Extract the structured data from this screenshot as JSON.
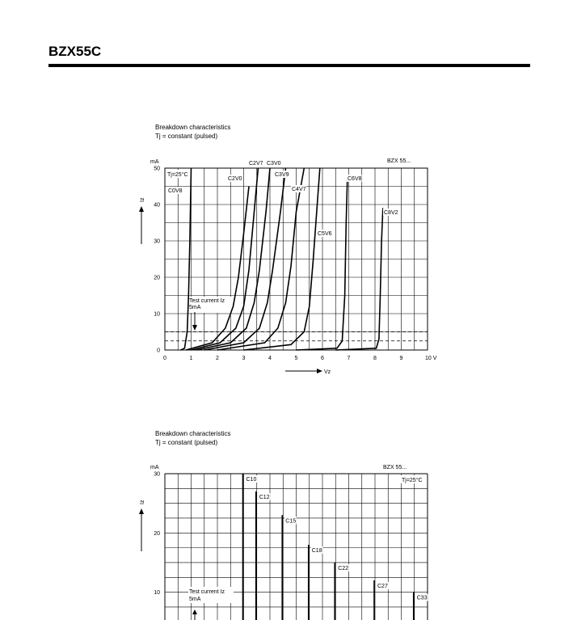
{
  "page": {
    "title": "BZX55C"
  },
  "chart_data": [
    {
      "type": "line",
      "caption": [
        "Breakdown characteristics",
        "Tj = constant (pulsed)"
      ],
      "watermark": "BZX 55...",
      "y_unit": "mA",
      "y_axis_label": "Iz",
      "x_axis_label": "Vz",
      "x_unit": "V",
      "xlim": [
        0,
        10
      ],
      "ylim": [
        0,
        50
      ],
      "x_ticks": [
        "0",
        "1",
        "2",
        "3",
        "4",
        "5",
        "6",
        "7",
        "8",
        "9",
        "10"
      ],
      "y_ticks": [
        "0",
        "10",
        "20",
        "30",
        "40",
        "50"
      ],
      "condition_label": "Tj=25°C",
      "test_current": {
        "label_line1": "Test current Iz",
        "label_line2": "5mA",
        "value": 5
      },
      "reference_lines": [
        2.5,
        5
      ],
      "grid": true,
      "series": [
        {
          "name": "C0V8",
          "label": "C0V8",
          "points": [
            [
              0.6,
              0
            ],
            [
              0.75,
              0.5
            ],
            [
              0.85,
              5
            ],
            [
              0.9,
              15
            ],
            [
              0.95,
              30
            ],
            [
              1.0,
              50
            ]
          ]
        },
        {
          "name": "C2V0",
          "label": "C2V0",
          "points": [
            [
              0.8,
              0
            ],
            [
              1.8,
              2
            ],
            [
              2.3,
              6
            ],
            [
              2.6,
              12
            ],
            [
              2.8,
              20
            ],
            [
              3.0,
              32
            ],
            [
              3.2,
              45
            ]
          ]
        },
        {
          "name": "C2V7",
          "label": "C2V7",
          "points": [
            [
              1.0,
              0
            ],
            [
              2.1,
              2
            ],
            [
              2.7,
              6
            ],
            [
              3.0,
              12
            ],
            [
              3.2,
              22
            ],
            [
              3.4,
              38
            ],
            [
              3.55,
              50
            ]
          ]
        },
        {
          "name": "C3V0",
          "label": "C3V0",
          "points": [
            [
              1.2,
              0
            ],
            [
              2.5,
              2
            ],
            [
              3.1,
              6
            ],
            [
              3.4,
              13
            ],
            [
              3.6,
              22
            ],
            [
              3.85,
              38
            ],
            [
              4.0,
              50
            ]
          ]
        },
        {
          "name": "C3V9",
          "label": "C3V9",
          "points": [
            [
              1.5,
              0
            ],
            [
              3.0,
              2
            ],
            [
              3.6,
              6
            ],
            [
              3.9,
              13
            ],
            [
              4.1,
              22
            ],
            [
              4.4,
              38
            ],
            [
              4.6,
              50
            ]
          ]
        },
        {
          "name": "C4V7",
          "label": "C4V7",
          "points": [
            [
              2.0,
              0
            ],
            [
              3.8,
              2
            ],
            [
              4.3,
              6
            ],
            [
              4.6,
              13
            ],
            [
              4.8,
              23
            ],
            [
              5.0,
              38
            ],
            [
              5.3,
              50
            ]
          ]
        },
        {
          "name": "C5V6",
          "label": "C5V6",
          "points": [
            [
              3.0,
              0
            ],
            [
              4.8,
              1.5
            ],
            [
              5.3,
              5
            ],
            [
              5.5,
              12
            ],
            [
              5.65,
              25
            ],
            [
              5.8,
              40
            ],
            [
              5.9,
              50
            ]
          ]
        },
        {
          "name": "C6V8",
          "label": "C6V8",
          "points": [
            [
              5.0,
              0
            ],
            [
              6.55,
              0.5
            ],
            [
              6.75,
              2.5
            ],
            [
              6.85,
              15
            ],
            [
              6.9,
              35
            ],
            [
              6.95,
              48
            ]
          ]
        },
        {
          "name": "C8V2",
          "label": "C8V2",
          "points": [
            [
              6.5,
              0
            ],
            [
              8.05,
              0.5
            ],
            [
              8.15,
              3
            ],
            [
              8.2,
              15
            ],
            [
              8.25,
              30
            ],
            [
              8.3,
              39
            ]
          ]
        }
      ]
    },
    {
      "type": "line",
      "caption": [
        "Breakdown characteristics",
        "Tj = constant (pulsed)"
      ],
      "watermark": "BZX 55...",
      "y_unit": "mA",
      "y_axis_label": "Iz",
      "ylim": [
        0,
        30
      ],
      "y_ticks": [
        "10",
        "20",
        "30"
      ],
      "condition_label": "Tj=25°C",
      "test_current": {
        "label_line1": "Test current Iz",
        "label_line2": "5mA",
        "value": 5
      },
      "grid": true,
      "series": [
        {
          "name": "C10",
          "label": "C10",
          "x_pos": 6,
          "top": 30
        },
        {
          "name": "C12",
          "label": "C12",
          "x_pos": 7,
          "top": 27
        },
        {
          "name": "C15",
          "label": "C15",
          "x_pos": 9,
          "top": 23
        },
        {
          "name": "C18",
          "label": "C18",
          "x_pos": 11,
          "top": 18
        },
        {
          "name": "C22",
          "label": "C22",
          "x_pos": 13,
          "top": 15
        },
        {
          "name": "C27",
          "label": "C27",
          "x_pos": 16,
          "top": 12
        },
        {
          "name": "C33",
          "label": "C33",
          "x_pos": 19,
          "top": 10
        }
      ]
    }
  ]
}
